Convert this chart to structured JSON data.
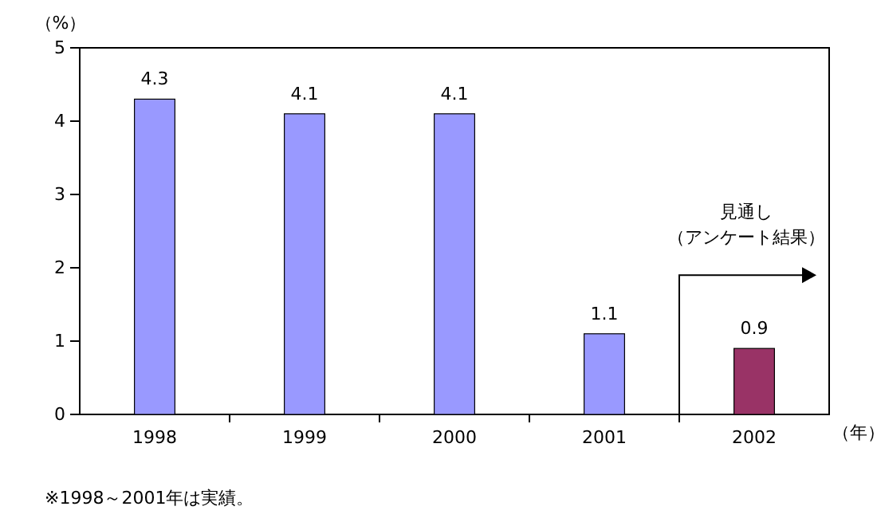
{
  "chart_data": {
    "type": "bar",
    "categories": [
      "1998",
      "1999",
      "2000",
      "2001",
      "2002"
    ],
    "values": [
      4.3,
      4.1,
      4.1,
      1.1,
      0.9
    ],
    "colors": [
      "#9999ff",
      "#9999ff",
      "#9999ff",
      "#9999ff",
      "#993366"
    ],
    "ylim": [
      0,
      5
    ],
    "yticks": [
      0,
      1,
      2,
      3,
      4,
      5
    ],
    "ylabel": "（%）",
    "xlabel": "（年）",
    "data_labels": true,
    "annotations": [
      "見通し",
      "（アンケート結果）",
      "※1998～2001年は実績。"
    ]
  }
}
